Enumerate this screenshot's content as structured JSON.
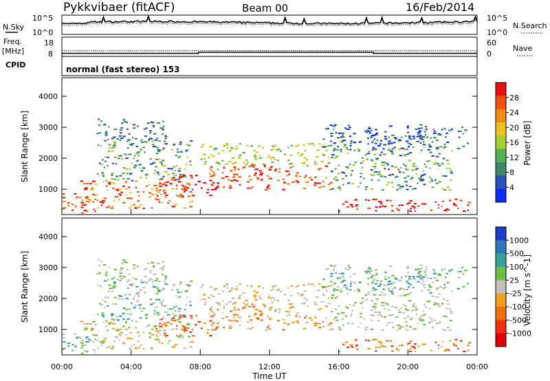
{
  "header": {
    "station": "Pykkvibaer (fitACF)",
    "beam": "Beam 00",
    "date": "16/Feb/2014"
  },
  "chart_data": [
    {
      "type": "line",
      "panel": "noise",
      "left_label": "N.Sky",
      "right_label": "N.Search",
      "left_ticks": [
        "10^5",
        "10^0"
      ],
      "right_ticks": [
        "10^5",
        "10^0"
      ],
      "xlim": [
        "00:00",
        "24:00"
      ]
    },
    {
      "type": "line",
      "panel": "frequency",
      "left_label": [
        "Freq.",
        "[MHz]"
      ],
      "right_label": "Nave",
      "left_ticks": [
        18,
        8
      ],
      "right_ticks": [
        60,
        0
      ],
      "freq_series": {
        "x": [
          0,
          7.9,
          7.9,
          18,
          18,
          24
        ],
        "y": [
          9.5,
          9.5,
          10.5,
          10.5,
          9.5,
          9.5
        ]
      },
      "nave_series": {
        "x": [
          0,
          24
        ],
        "y": [
          27,
          27
        ]
      }
    },
    {
      "type": "table",
      "panel": "cpid",
      "label": "CPID",
      "text": "normal (fast stereo) 153"
    },
    {
      "type": "heatmap",
      "panel": "power",
      "ylabel": "Slant Range [km]",
      "yticks": [
        1000,
        2000,
        3000,
        4000
      ],
      "ylim": [
        180,
        4600
      ],
      "colorbar_label": "Power [dB]",
      "colorbar_ticks": [
        4,
        8,
        12,
        16,
        20,
        24,
        28
      ],
      "clim": [
        0,
        32
      ]
    },
    {
      "type": "heatmap",
      "panel": "velocity",
      "ylabel": "Slant Range [km]",
      "yticks": [
        1000,
        2000,
        3000,
        4000
      ],
      "ylim": [
        180,
        4600
      ],
      "xlabel": "Time UT",
      "xticks": [
        "00:00",
        "04:00",
        "08:00",
        "12:00",
        "16:00",
        "20:00",
        "00:00"
      ],
      "xlim": [
        0,
        24
      ],
      "colorbar_label": "Velocity [m s^-1]",
      "colorbar_ticks": [
        "1000",
        "500",
        "100",
        "25",
        "-25",
        "-100",
        "-500",
        "-1000"
      ]
    }
  ],
  "colors": {
    "power": [
      "#0a2cff",
      "#2a4fb8",
      "#3a8a6a",
      "#55b050",
      "#a6d030",
      "#f0c020",
      "#f08a10",
      "#f05010",
      "#e81010"
    ],
    "velocity": [
      "#1e3ec8",
      "#2e7ab8",
      "#3aa0a0",
      "#6cc040",
      "#c0c0b8",
      "#f0a020",
      "#f07010",
      "#f03010",
      "#e00000"
    ]
  }
}
